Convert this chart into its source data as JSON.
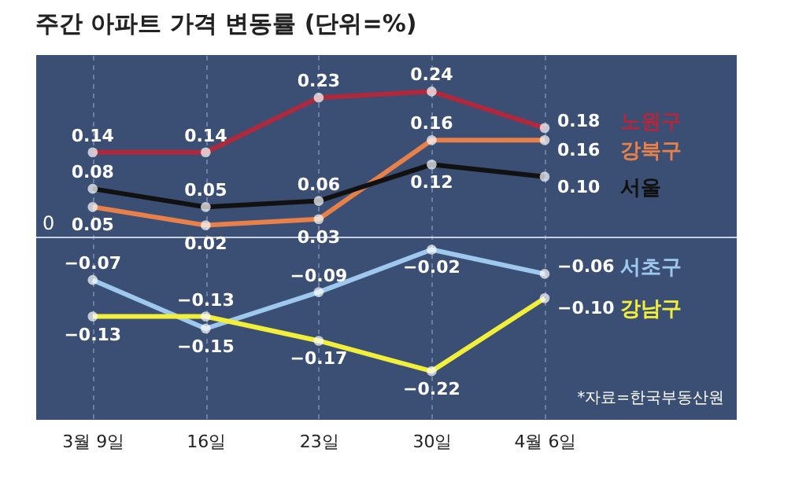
{
  "chart_data": {
    "type": "line",
    "title": "주간 아파트 가격 변동률 (단위=%)",
    "categories": [
      "3월 9일",
      "16일",
      "23일",
      "30일",
      "4월 6일"
    ],
    "series": [
      {
        "name": "노원구",
        "color": "#b0283c",
        "values": [
          0.14,
          0.14,
          0.23,
          0.24,
          0.18
        ],
        "value_labels": [
          "0.14",
          "0.14",
          "0.23",
          "0.24",
          "0.18"
        ]
      },
      {
        "name": "강북구",
        "color": "#e8804a",
        "values": [
          0.05,
          0.02,
          0.03,
          0.16,
          0.16
        ],
        "value_labels": [
          "0.05",
          "0.02",
          "0.03",
          "0.16",
          "0.16"
        ]
      },
      {
        "name": "서울",
        "color": "#111111",
        "values": [
          0.08,
          0.05,
          0.06,
          0.12,
          0.1
        ],
        "value_labels": [
          "0.08",
          "0.05",
          "0.06",
          "0.12",
          "0.10"
        ]
      },
      {
        "name": "서초구",
        "color": "#9ec8ee",
        "values": [
          -0.07,
          -0.15,
          -0.09,
          -0.02,
          -0.06
        ],
        "value_labels": [
          "−0.07",
          "−0.15",
          "−0.09",
          "−0.02",
          "−0.06"
        ]
      },
      {
        "name": "강남구",
        "color": "#f2ef3a",
        "values": [
          -0.13,
          -0.13,
          -0.17,
          -0.22,
          -0.1
        ],
        "value_labels": [
          "−0.13",
          "−0.13",
          "−0.17",
          "−0.22",
          "−0.10"
        ]
      }
    ],
    "ylim": [
      -0.3,
      0.3
    ],
    "ref_lines": [
      {
        "axis": "y",
        "value": 0,
        "label": "0",
        "color": "#c8cfdc"
      }
    ],
    "marker": "circle",
    "grid": "x",
    "legend": "right",
    "tick_labels": "x",
    "annotations": [
      "*자료=한국부동산원"
    ]
  }
}
